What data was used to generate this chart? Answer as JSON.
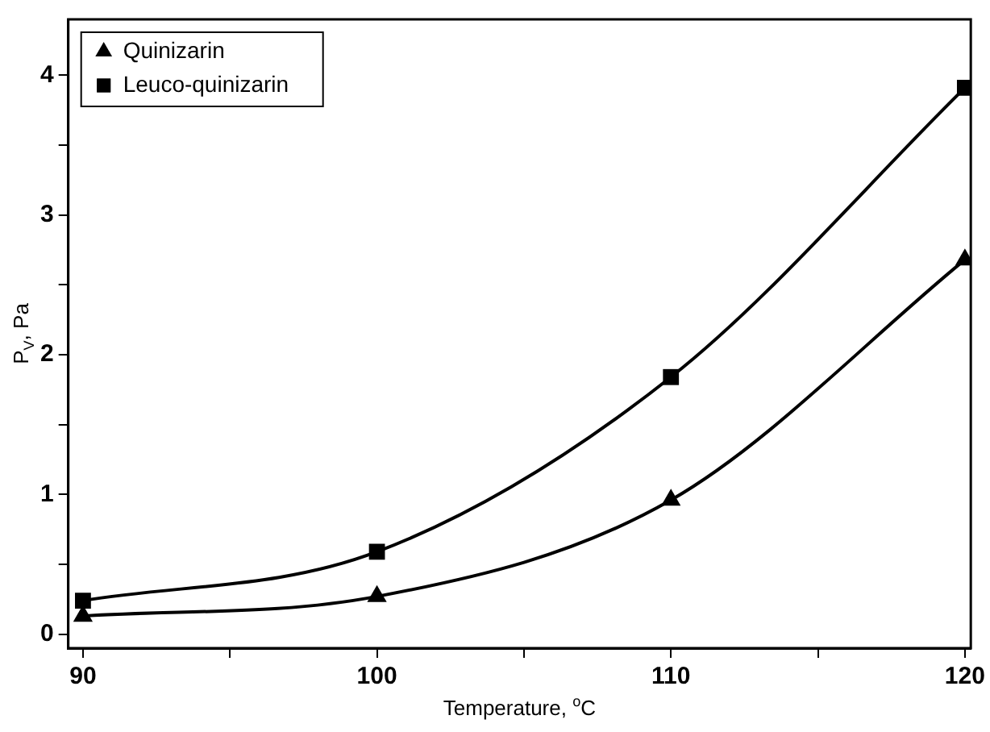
{
  "chart_data": {
    "type": "line",
    "xlabel": "Temperature, $^{o}$C",
    "ylabel": "P$_{V}$, Pa",
    "x": [
      90,
      100,
      110,
      120
    ],
    "series": [
      {
        "name": "Quinizarin",
        "color": "#000000",
        "marker": "triangle",
        "values": [
          0.13,
          0.27,
          0.96,
          2.68
        ]
      },
      {
        "name": "Leuco-quinizarin",
        "color": "#000000",
        "marker": "square",
        "values": [
          0.24,
          0.59,
          1.84,
          3.91
        ]
      }
    ],
    "xlim": [
      89.5,
      120.2
    ],
    "ylim": [
      -0.1,
      4.4
    ],
    "xticks": [
      90,
      {
        "value": 95,
        "label": null
      },
      100,
      {
        "value": 105,
        "label": null
      },
      110,
      {
        "value": 115,
        "label": null
      },
      120
    ],
    "yticks": [
      0,
      {
        "value": 0.5,
        "label": null
      },
      1,
      {
        "value": 1.5,
        "label": null
      },
      2,
      {
        "value": 2.5,
        "label": null
      },
      3,
      {
        "value": 3.5,
        "label": null
      },
      4
    ],
    "grid": false,
    "legend": "top left",
    "line_style": "solid"
  }
}
